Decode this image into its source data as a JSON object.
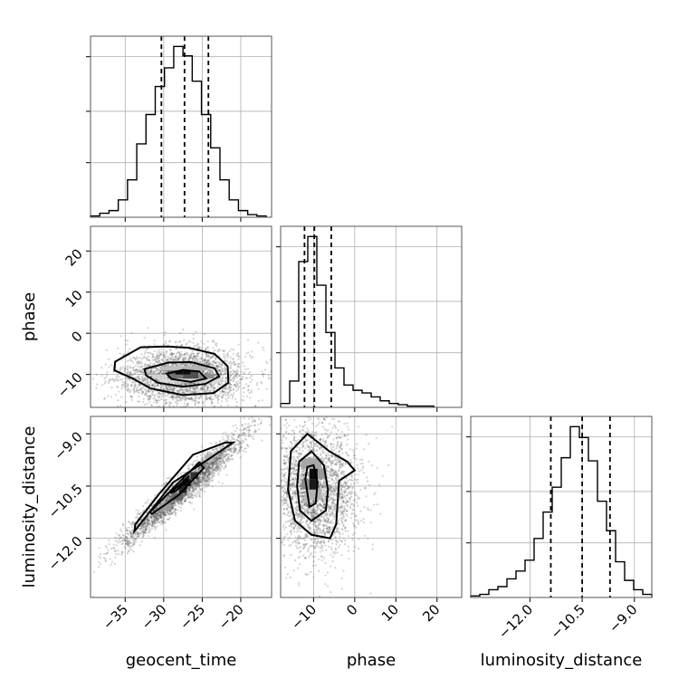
{
  "chart_data": {
    "type": "corner",
    "parameters": [
      {
        "key": "geocent_time",
        "label": "geocent_time",
        "range": [
          -39.5,
          -16
        ],
        "ticks": [
          -35,
          -30,
          -25,
          -20
        ],
        "tick_labels": [
          "−35",
          "−30",
          "−25",
          "−20"
        ]
      },
      {
        "key": "phase",
        "label": "phase",
        "range": [
          -18,
          26
        ],
        "ticks": [
          -10,
          0,
          10,
          20
        ],
        "tick_labels": [
          "−10",
          "0",
          "10",
          "20"
        ]
      },
      {
        "key": "luminosity_distance",
        "label": "luminosity_distance",
        "range": [
          -13.7,
          -8.5
        ],
        "ticks": [
          -12.0,
          -10.5,
          -9.0
        ],
        "tick_labels": [
          "−12.0",
          "−10.5",
          "−9.0"
        ]
      }
    ],
    "diagonal": [
      {
        "parameter": "geocent_time",
        "bin_edges": [
          -39.5,
          -38.3,
          -37.1,
          -35.9,
          -34.7,
          -33.5,
          -32.3,
          -31.1,
          -29.9,
          -28.7,
          -27.5,
          -26.3,
          -25.1,
          -23.9,
          -22.7,
          -21.5,
          -20.3,
          -19.1,
          -17.9,
          -16.7
        ],
        "counts": [
          1,
          3,
          5,
          13,
          28,
          55,
          77,
          98,
          112,
          128,
          121,
          102,
          77,
          52,
          28,
          13,
          5,
          2,
          1
        ],
        "quantiles": [
          -30.3,
          -27.3,
          -24.2
        ]
      },
      {
        "parameter": "phase",
        "bin_edges": [
          -18,
          -15.8,
          -13.6,
          -11.4,
          -9.2,
          -7.0,
          -4.8,
          -2.6,
          -0.4,
          1.8,
          4.0,
          6.2,
          8.4,
          10.6,
          12.8,
          15.0,
          17.2,
          19.2
        ],
        "counts": [
          3,
          20,
          111,
          130,
          93,
          57,
          30,
          17,
          13,
          11,
          8,
          5,
          3,
          2,
          1,
          1,
          1
        ],
        "quantiles": [
          -12.2,
          -9.8,
          -5.7
        ]
      },
      {
        "parameter": "luminosity_distance",
        "bin_edges": [
          -13.7,
          -13.44,
          -13.18,
          -12.92,
          -12.66,
          -12.4,
          -12.14,
          -11.88,
          -11.62,
          -11.36,
          -11.1,
          -10.84,
          -10.58,
          -10.32,
          -10.06,
          -9.8,
          -9.54,
          -9.28,
          -9.02,
          -8.76,
          -8.5
        ],
        "counts": [
          1,
          2,
          5,
          7,
          12,
          17,
          24,
          38,
          55,
          71,
          90,
          110,
          103,
          88,
          62,
          43,
          23,
          11,
          5,
          2
        ],
        "quantiles": [
          -11.4,
          -10.5,
          -9.7
        ]
      }
    ],
    "pairs": [
      {
        "x": "geocent_time",
        "y": "phase",
        "center": [
          -27.5,
          -10.5
        ],
        "spread": [
          4.2,
          3.6
        ],
        "correlation": 0,
        "contours": [
          [
            [
              -36.3,
              -6.9
            ],
            [
              -33,
              -3.4
            ],
            [
              -29.6,
              -3.2
            ],
            [
              -26.8,
              -3.5
            ],
            [
              -23.4,
              -5.0
            ],
            [
              -21.7,
              -8.0
            ],
            [
              -21.6,
              -12.0
            ],
            [
              -23.5,
              -14.5
            ],
            [
              -27.5,
              -15.0
            ],
            [
              -31.7,
              -13.4
            ],
            [
              -34.0,
              -11.0
            ],
            [
              -36.4,
              -9.0
            ]
          ],
          [
            [
              -32.5,
              -8.7
            ],
            [
              -29.4,
              -7.1
            ],
            [
              -26.4,
              -7.0
            ],
            [
              -23.4,
              -8.5
            ],
            [
              -22.8,
              -10.5
            ],
            [
              -24.6,
              -12.3
            ],
            [
              -27.5,
              -13.0
            ],
            [
              -30.8,
              -12.0
            ],
            [
              -32.3,
              -10.2
            ]
          ],
          [
            [
              -29.6,
              -9.8
            ],
            [
              -27.5,
              -8.9
            ],
            [
              -25.4,
              -9.3
            ],
            [
              -24.5,
              -11.0
            ],
            [
              -26.5,
              -11.8
            ],
            [
              -29.0,
              -11.1
            ]
          ]
        ],
        "density_cells": [
          [
            -30.5,
            -12.0,
            3.0,
            1.0,
            0.15
          ],
          [
            -27.5,
            -12.0,
            3.0,
            1.0,
            0.2
          ],
          [
            -24.5,
            -12.0,
            2.0,
            1.0,
            0.15
          ],
          [
            -31.5,
            -11.0,
            2.0,
            1.0,
            0.18
          ],
          [
            -29.5,
            -11.0,
            2.0,
            1.0,
            0.55
          ],
          [
            -27.5,
            -11.0,
            2.0,
            1.0,
            0.7
          ],
          [
            -25.5,
            -11.0,
            2.0,
            1.0,
            0.45
          ],
          [
            -29.5,
            -10.0,
            1.0,
            1.0,
            0.6
          ],
          [
            -28.5,
            -10.0,
            1.0,
            1.0,
            0.95
          ],
          [
            -27.5,
            -10.0,
            1.0,
            1.0,
            0.95
          ],
          [
            -26.5,
            -10.0,
            1.0,
            1.0,
            0.7
          ],
          [
            -30.5,
            -9.0,
            3.0,
            1.0,
            0.25
          ],
          [
            -27.5,
            -9.0,
            3.0,
            1.0,
            0.3
          ]
        ]
      },
      {
        "x": "geocent_time",
        "y": "luminosity_distance",
        "center": [
          -27.5,
          -10.6
        ],
        "spread": [
          4.1,
          0.82
        ],
        "correlation": 0.96,
        "contours": [
          [
            [
              -33.8,
              -11.8
            ],
            [
              -28.8,
              -10.4
            ],
            [
              -24.0,
              -9.7
            ],
            [
              -21.0,
              -9.25
            ],
            [
              -22.0,
              -9.25
            ],
            [
              -26.2,
              -9.6
            ],
            [
              -30.5,
              -10.7
            ],
            [
              -33.7,
              -11.6
            ]
          ],
          [
            [
              -31.8,
              -11.25
            ],
            [
              -28.5,
              -10.5
            ],
            [
              -25.4,
              -9.82
            ],
            [
              -24.8,
              -9.98
            ],
            [
              -28.0,
              -10.75
            ],
            [
              -31.5,
              -11.3
            ]
          ],
          [
            [
              -29.2,
              -10.7
            ],
            [
              -27.6,
              -10.4
            ],
            [
              -26.7,
              -10.2
            ],
            [
              -27.0,
              -10.35
            ],
            [
              -28.5,
              -10.65
            ]
          ]
        ],
        "density_cells": [
          [
            -30.5,
            -11.2,
            1.5,
            0.2,
            0.4
          ],
          [
            -29.0,
            -10.9,
            1.5,
            0.2,
            0.6
          ],
          [
            -28.0,
            -10.7,
            1.0,
            0.2,
            0.85
          ],
          [
            -27.5,
            -10.5,
            1.0,
            0.2,
            0.95
          ],
          [
            -26.5,
            -10.3,
            1.0,
            0.2,
            0.8
          ],
          [
            -25.5,
            -10.0,
            1.0,
            0.2,
            0.5
          ],
          [
            -24.5,
            -9.8,
            1.0,
            0.2,
            0.3
          ]
        ]
      },
      {
        "x": "phase",
        "y": "luminosity_distance",
        "center": [
          -10.0,
          -10.6
        ],
        "spread": [
          5.5,
          0.95
        ],
        "correlation": 0,
        "contours": [
          [
            [
              -16.2,
              -10.6
            ],
            [
              -15.5,
              -9.5
            ],
            [
              -11.5,
              -9.0
            ],
            [
              -6.2,
              -9.5
            ],
            [
              -1.8,
              -9.8
            ],
            [
              0.0,
              -10.05
            ],
            [
              -3.8,
              -10.35
            ],
            [
              -4.5,
              -11.6
            ],
            [
              -6.0,
              -12.0
            ],
            [
              -10.5,
              -11.9
            ],
            [
              -14.5,
              -11.5
            ]
          ],
          [
            [
              -14.0,
              -10.5
            ],
            [
              -13.5,
              -9.8
            ],
            [
              -10.5,
              -9.5
            ],
            [
              -7.5,
              -9.9
            ],
            [
              -6.5,
              -10.6
            ],
            [
              -7.0,
              -11.2
            ],
            [
              -10.5,
              -11.5
            ],
            [
              -13.3,
              -11.2
            ]
          ],
          [
            [
              -12.0,
              -10.3
            ],
            [
              -11.5,
              -9.95
            ],
            [
              -10.0,
              -9.9
            ],
            [
              -9.0,
              -10.4
            ],
            [
              -9.5,
              -11.0
            ],
            [
              -11.0,
              -11.1
            ]
          ]
        ],
        "density_cells": [
          [
            -12.0,
            -10.9,
            4.0,
            0.3,
            0.3
          ],
          [
            -13.0,
            -10.6,
            4.0,
            0.3,
            0.45
          ],
          [
            -11.0,
            -10.6,
            2.0,
            0.3,
            0.9
          ],
          [
            -11.0,
            -10.3,
            2.0,
            0.3,
            0.95
          ],
          [
            -13.0,
            -10.0,
            5.0,
            0.3,
            0.35
          ],
          [
            -9.0,
            -10.3,
            2.0,
            0.3,
            0.4
          ]
        ]
      }
    ],
    "grid": true,
    "quantile_lines": "dashed"
  }
}
